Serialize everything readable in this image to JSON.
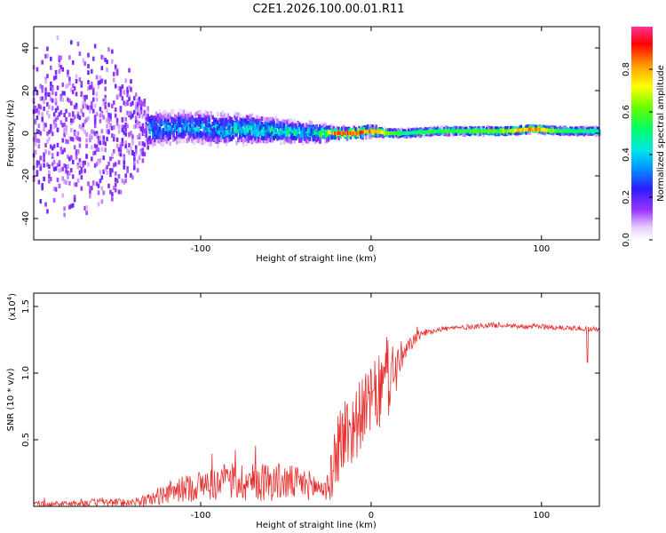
{
  "chart_data": [
    {
      "type": "heatmap",
      "title": "C2E1.2026.100.00.01.R11",
      "xlabel": "Height of straight line (km)",
      "ylabel": "Frequency (Hz)",
      "xlim": [
        -198,
        134
      ],
      "ylim": [
        -50,
        50
      ],
      "x_ticks": [
        -100,
        0,
        100
      ],
      "x_tick_labels": [
        "-100",
        "0",
        "100"
      ],
      "y_ticks": [
        -40,
        -20,
        0,
        20,
        40
      ],
      "y_tick_labels": [
        "-40",
        "-20",
        "0",
        "20",
        "40"
      ],
      "colorbar": {
        "label": "Normalized spectral amplitude",
        "range": [
          0,
          1
        ],
        "ticks": [
          0.0,
          0.2,
          0.4,
          0.6,
          0.8
        ],
        "tick_labels": [
          "0.0",
          "0.2",
          "0.4",
          "0.6",
          "0.8"
        ],
        "colormap": "rainbow"
      },
      "description_points": {
        "x": [
          -190,
          -170,
          -150,
          -130,
          -110,
          -90,
          -70,
          -50,
          -35,
          -20,
          -10,
          0,
          10,
          20,
          40,
          60,
          80,
          95,
          110,
          125
        ],
        "center_freq": [
          2,
          1,
          2,
          2,
          3,
          2,
          2,
          1,
          0,
          0,
          0,
          1,
          0,
          0,
          1,
          1,
          1,
          2,
          1,
          1
        ],
        "spread_hz": [
          45,
          45,
          45,
          10,
          9,
          9,
          8,
          6,
          6,
          3,
          3,
          3,
          2,
          2,
          2,
          2,
          2,
          2,
          2,
          2
        ],
        "peak_amplitude": [
          0.15,
          0.2,
          0.25,
          0.4,
          0.4,
          0.45,
          0.5,
          0.55,
          0.5,
          0.95,
          0.95,
          0.9,
          0.7,
          0.55,
          0.6,
          0.65,
          0.7,
          0.95,
          0.6,
          0.55
        ]
      }
    },
    {
      "type": "line",
      "xlabel": "Height of straight line (km)",
      "ylabel": "SNR (10 * v/v)",
      "y_multiplier_label": "(x10",
      "y_multiplier_exponent": "4",
      "y_multiplier_close": ")",
      "xlim": [
        -198,
        134
      ],
      "ylim": [
        0,
        1.6
      ],
      "x_ticks": [
        -100,
        0,
        100
      ],
      "x_tick_labels": [
        "-100",
        "0",
        "100"
      ],
      "y_ticks": [
        0.5,
        1.0,
        1.5
      ],
      "y_tick_labels": [
        "0.5",
        "1.0",
        "1.5"
      ],
      "line_color": "#e8312f",
      "series": [
        {
          "name": "SNR",
          "x": [
            -198,
            -180,
            -160,
            -140,
            -130,
            -120,
            -110,
            -100,
            -90,
            -80,
            -70,
            -60,
            -50,
            -40,
            -30,
            -25,
            -22,
            -20,
            -15,
            -10,
            -5,
            0,
            5,
            10,
            15,
            20,
            25,
            30,
            40,
            50,
            60,
            70,
            80,
            90,
            100,
            110,
            120,
            130,
            134
          ],
          "mean": [
            0.02,
            0.02,
            0.03,
            0.03,
            0.05,
            0.1,
            0.13,
            0.16,
            0.17,
            0.19,
            0.18,
            0.19,
            0.18,
            0.17,
            0.14,
            0.14,
            0.3,
            0.45,
            0.55,
            0.6,
            0.72,
            0.8,
            0.85,
            0.95,
            1.05,
            1.15,
            1.25,
            1.3,
            1.33,
            1.34,
            1.35,
            1.36,
            1.36,
            1.35,
            1.35,
            1.34,
            1.34,
            1.33,
            1.33
          ],
          "noise": [
            0.02,
            0.02,
            0.03,
            0.03,
            0.05,
            0.08,
            0.1,
            0.12,
            0.13,
            0.15,
            0.15,
            0.15,
            0.14,
            0.12,
            0.1,
            0.1,
            0.25,
            0.3,
            0.3,
            0.3,
            0.25,
            0.25,
            0.3,
            0.3,
            0.2,
            0.08,
            0.05,
            0.03,
            0.02,
            0.02,
            0.02,
            0.02,
            0.02,
            0.02,
            0.02,
            0.02,
            0.02,
            0.02,
            0.02
          ]
        }
      ]
    }
  ]
}
